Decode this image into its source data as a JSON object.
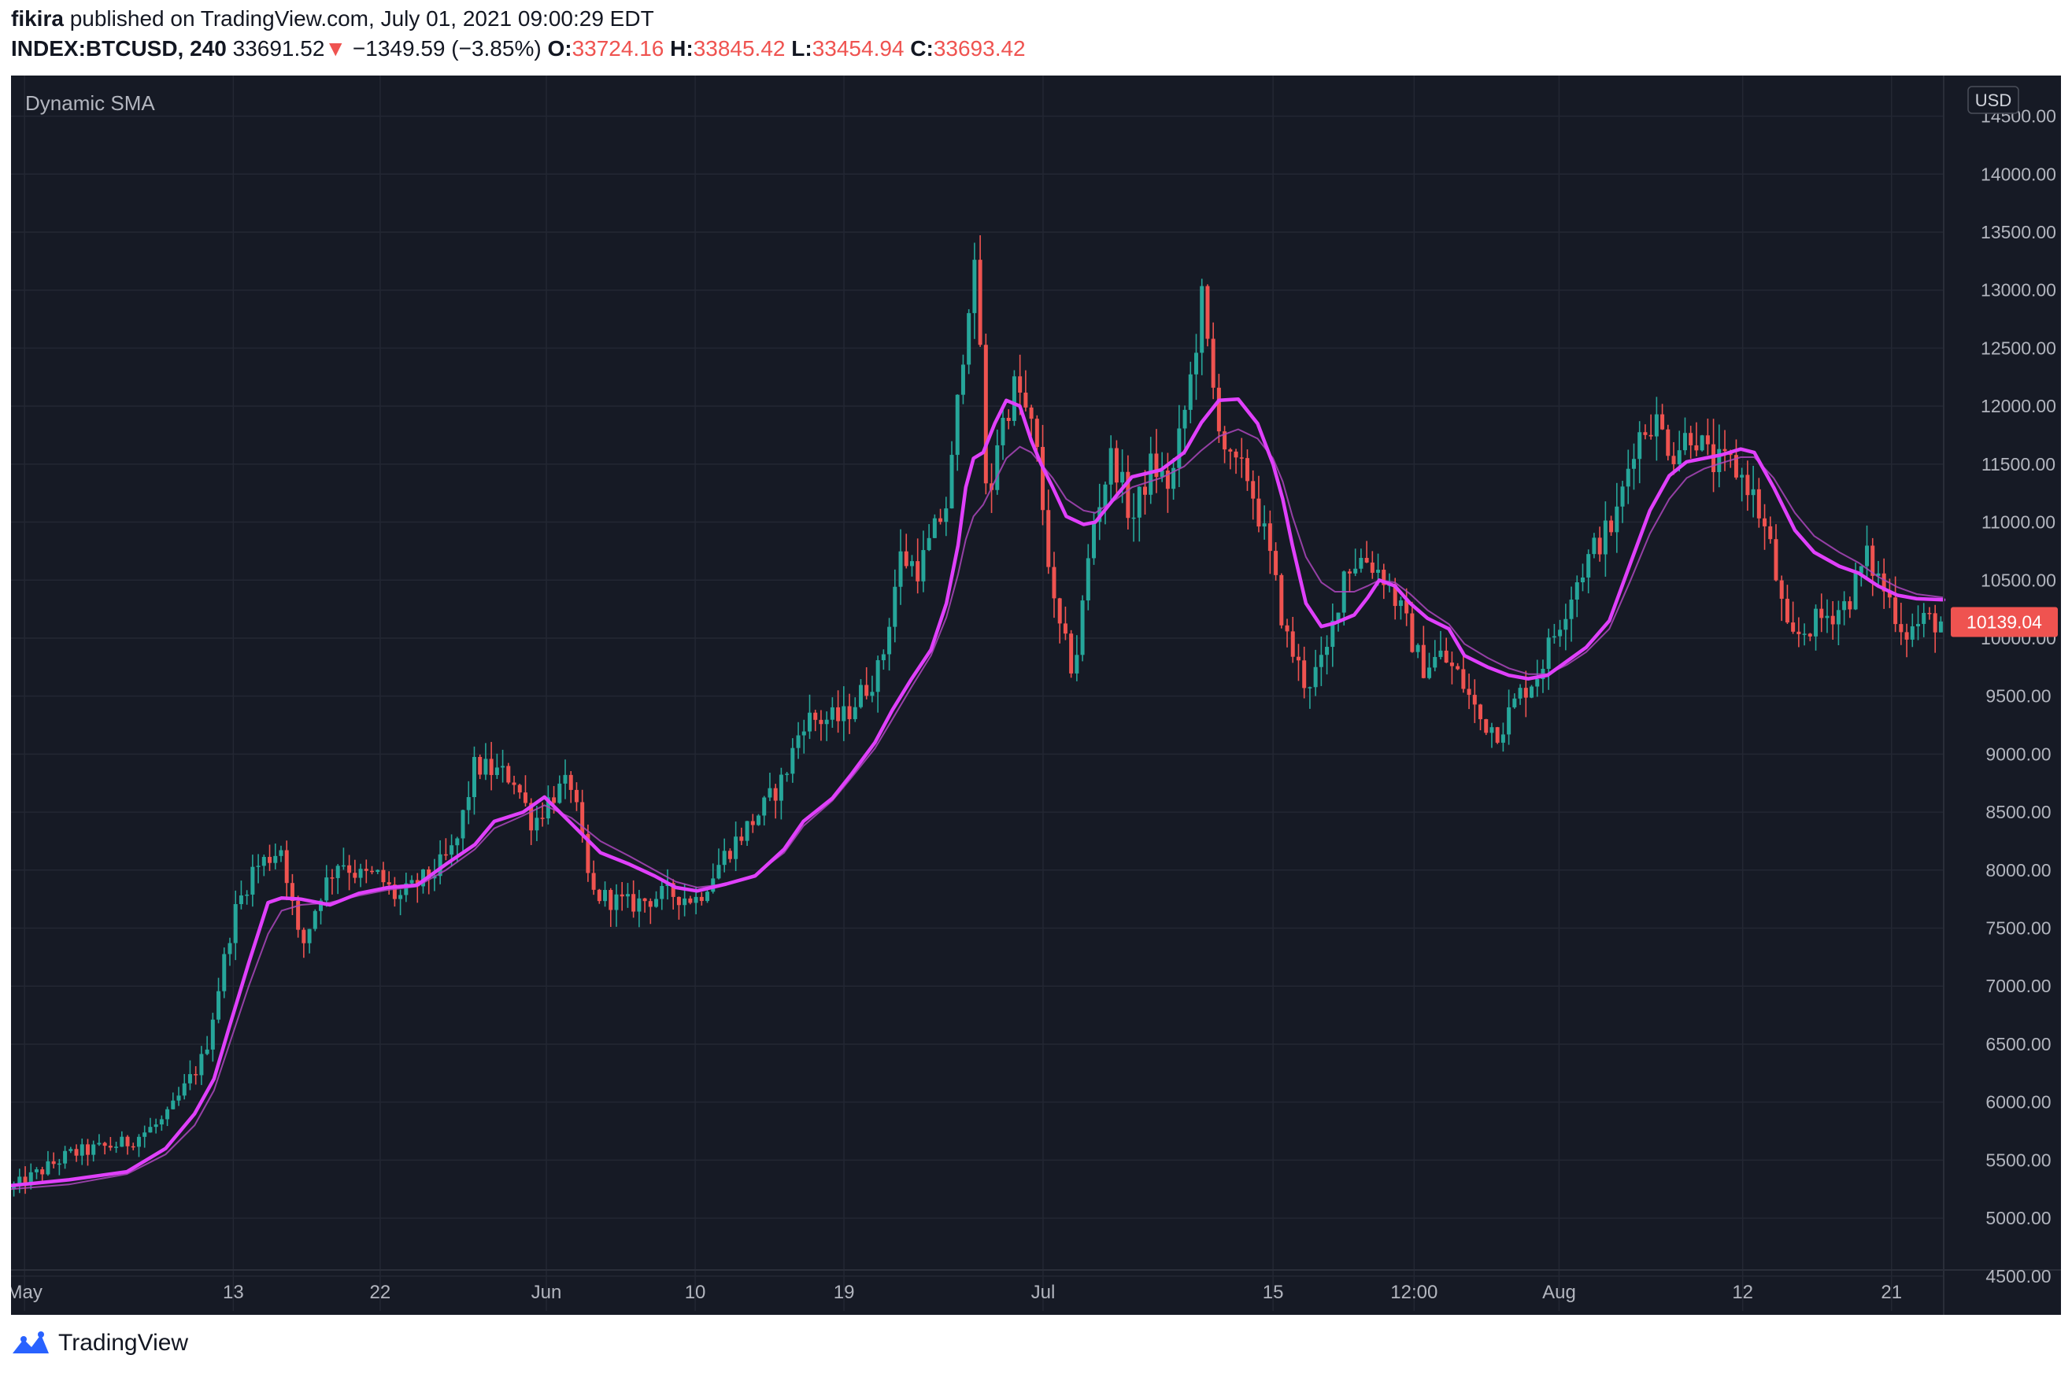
{
  "header": {
    "author": "fikira",
    "published_text": "published on TradingView.com, July 01, 2021 09:00:29 EDT",
    "symbol": "INDEX:BTCUSD, 240",
    "last_price": "33691.52",
    "change_arrow": "▼",
    "change": "−1349.59 (−3.85%)",
    "open_label": "O:",
    "open": "33724.16",
    "high_label": "H:",
    "high": "33845.42",
    "low_label": "L:",
    "low": "33454.94",
    "close_label": "C:",
    "close": "33693.42"
  },
  "chart_data": {
    "type": "candlestick",
    "indicator_label": "Dynamic SMA",
    "currency": "USD",
    "ylim": [
      4200,
      14850
    ],
    "yticks": [
      4500,
      5000,
      5500,
      6000,
      6500,
      7000,
      7500,
      8000,
      8500,
      9000,
      9500,
      10000,
      10500,
      11000,
      11500,
      12000,
      12500,
      13000,
      13500,
      14000,
      14500
    ],
    "price_label": "10139.04",
    "xlim": [
      0,
      100
    ],
    "xticks": [
      {
        "label": "May",
        "x": 0.7
      },
      {
        "label": "13",
        "x": 11.5
      },
      {
        "label": "22",
        "x": 19.1
      },
      {
        "label": "Jun",
        "x": 27.7
      },
      {
        "label": "10",
        "x": 35.4
      },
      {
        "label": "19",
        "x": 43.1
      },
      {
        "label": "Jul",
        "x": 53.4
      },
      {
        "label": "15",
        "x": 65.3
      },
      {
        "label": "12:00",
        "x": 72.6
      },
      {
        "label": "Aug",
        "x": 80.1
      },
      {
        "label": "12",
        "x": 89.6
      },
      {
        "label": "21",
        "x": 97.3
      }
    ],
    "anchors": [
      [
        0,
        5250
      ],
      [
        3,
        5550
      ],
      [
        6,
        5650
      ],
      [
        8,
        5850
      ],
      [
        10,
        6400
      ],
      [
        11.5,
        7600
      ],
      [
        12.5,
        8000
      ],
      [
        14,
        8200
      ],
      [
        15,
        7300
      ],
      [
        16,
        7800
      ],
      [
        17,
        8100
      ],
      [
        18,
        7950
      ],
      [
        19,
        7950
      ],
      [
        20,
        7750
      ],
      [
        22,
        8000
      ],
      [
        23,
        8200
      ],
      [
        24,
        8900
      ],
      [
        26,
        8800
      ],
      [
        27,
        8400
      ],
      [
        28,
        8650
      ],
      [
        29,
        8750
      ],
      [
        30,
        7800
      ],
      [
        32,
        7700
      ],
      [
        34,
        7800
      ],
      [
        35.5,
        7750
      ],
      [
        37,
        8150
      ],
      [
        39,
        8550
      ],
      [
        40,
        8800
      ],
      [
        41,
        9300
      ],
      [
        43,
        9300
      ],
      [
        45,
        9750
      ],
      [
        46,
        10700
      ],
      [
        47,
        10600
      ],
      [
        48.5,
        11200
      ],
      [
        49.5,
        12900
      ],
      [
        50,
        13200
      ],
      [
        50.5,
        11000
      ],
      [
        51,
        11700
      ],
      [
        52,
        12200
      ],
      [
        53,
        11700
      ],
      [
        54,
        10200
      ],
      [
        55,
        9700
      ],
      [
        56,
        11000
      ],
      [
        57,
        11600
      ],
      [
        58,
        11000
      ],
      [
        59,
        11500
      ],
      [
        60,
        11300
      ],
      [
        61,
        12200
      ],
      [
        61.7,
        13000
      ],
      [
        62,
        12300
      ],
      [
        63,
        11500
      ],
      [
        64,
        11400
      ],
      [
        65,
        10800
      ],
      [
        66,
        10000
      ],
      [
        67,
        9600
      ],
      [
        68,
        9800
      ],
      [
        69,
        10600
      ],
      [
        70,
        10700
      ],
      [
        71,
        10550
      ],
      [
        72,
        10200
      ],
      [
        73,
        9750
      ],
      [
        74,
        9850
      ],
      [
        75,
        9650
      ],
      [
        76,
        9300
      ],
      [
        77,
        9200
      ],
      [
        78,
        9500
      ],
      [
        79,
        9700
      ],
      [
        80,
        10100
      ],
      [
        81,
        10500
      ],
      [
        82,
        10800
      ],
      [
        83,
        11000
      ],
      [
        84,
        11700
      ],
      [
        85,
        11900
      ],
      [
        86,
        11600
      ],
      [
        87,
        11800
      ],
      [
        88,
        11500
      ],
      [
        89,
        11500
      ],
      [
        90,
        11300
      ],
      [
        91,
        10800
      ],
      [
        92,
        9950
      ],
      [
        93,
        10100
      ],
      [
        94,
        10200
      ],
      [
        95,
        10300
      ],
      [
        96,
        10700
      ],
      [
        97,
        10400
      ],
      [
        98,
        10050
      ],
      [
        99,
        10150
      ],
      [
        100,
        10140
      ]
    ],
    "sma_fast": [
      [
        0,
        5280
      ],
      [
        3,
        5330
      ],
      [
        6,
        5400
      ],
      [
        8,
        5600
      ],
      [
        9.5,
        5900
      ],
      [
        10.5,
        6200
      ],
      [
        11.3,
        6650
      ],
      [
        12.3,
        7200
      ],
      [
        13.3,
        7720
      ],
      [
        14,
        7760
      ],
      [
        15,
        7750
      ],
      [
        16.5,
        7700
      ],
      [
        18,
        7800
      ],
      [
        19.5,
        7850
      ],
      [
        21,
        7870
      ],
      [
        22.5,
        8050
      ],
      [
        24,
        8220
      ],
      [
        25,
        8420
      ],
      [
        26.5,
        8500
      ],
      [
        27.6,
        8630
      ],
      [
        29,
        8400
      ],
      [
        30.5,
        8150
      ],
      [
        32,
        8050
      ],
      [
        33.3,
        7950
      ],
      [
        34.4,
        7850
      ],
      [
        35.5,
        7820
      ],
      [
        37,
        7880
      ],
      [
        38.5,
        7950
      ],
      [
        40,
        8180
      ],
      [
        41,
        8420
      ],
      [
        42.5,
        8620
      ],
      [
        43.5,
        8830
      ],
      [
        44.7,
        9100
      ],
      [
        45.6,
        9380
      ],
      [
        46.6,
        9650
      ],
      [
        47.6,
        9900
      ],
      [
        48.4,
        10300
      ],
      [
        49,
        10800
      ],
      [
        49.4,
        11300
      ],
      [
        49.8,
        11550
      ],
      [
        50.3,
        11600
      ],
      [
        50.9,
        11850
      ],
      [
        51.5,
        12050
      ],
      [
        52.2,
        12000
      ],
      [
        52.8,
        11700
      ],
      [
        53.3,
        11500
      ],
      [
        53.9,
        11300
      ],
      [
        54.6,
        11050
      ],
      [
        55.5,
        10980
      ],
      [
        56.1,
        11000
      ],
      [
        57.2,
        11230
      ],
      [
        58,
        11390
      ],
      [
        59.5,
        11450
      ],
      [
        60.7,
        11600
      ],
      [
        61.6,
        11860
      ],
      [
        62.5,
        12050
      ],
      [
        63.5,
        12060
      ],
      [
        64.5,
        11850
      ],
      [
        65.3,
        11500
      ],
      [
        65.8,
        11200
      ],
      [
        66.3,
        10800
      ],
      [
        67,
        10300
      ],
      [
        67.8,
        10100
      ],
      [
        68.5,
        10130
      ],
      [
        69.5,
        10200
      ],
      [
        70.2,
        10350
      ],
      [
        70.8,
        10500
      ],
      [
        71.6,
        10450
      ],
      [
        72.4,
        10300
      ],
      [
        73.3,
        10170
      ],
      [
        74.4,
        10080
      ],
      [
        75.2,
        9850
      ],
      [
        76.4,
        9750
      ],
      [
        77.5,
        9680
      ],
      [
        78.5,
        9650
      ],
      [
        79.5,
        9680
      ],
      [
        80.5,
        9800
      ],
      [
        81.5,
        9920
      ],
      [
        82.7,
        10150
      ],
      [
        83.8,
        10650
      ],
      [
        84.8,
        11100
      ],
      [
        85.8,
        11400
      ],
      [
        86.7,
        11520
      ],
      [
        87.6,
        11550
      ],
      [
        88.5,
        11580
      ],
      [
        89.5,
        11630
      ],
      [
        90.2,
        11600
      ],
      [
        91.2,
        11300
      ],
      [
        92.3,
        10930
      ],
      [
        93.3,
        10740
      ],
      [
        94.6,
        10620
      ],
      [
        95.6,
        10560
      ],
      [
        96.6,
        10450
      ],
      [
        97.6,
        10370
      ],
      [
        98.6,
        10340
      ],
      [
        100,
        10330
      ]
    ],
    "sma_slow": [
      [
        0,
        5250
      ],
      [
        3,
        5290
      ],
      [
        6,
        5380
      ],
      [
        8,
        5550
      ],
      [
        9.5,
        5800
      ],
      [
        10.5,
        6100
      ],
      [
        11.3,
        6500
      ],
      [
        12.3,
        7000
      ],
      [
        13.3,
        7450
      ],
      [
        14,
        7650
      ],
      [
        15,
        7700
      ],
      [
        16.5,
        7720
      ],
      [
        18,
        7780
      ],
      [
        19.5,
        7830
      ],
      [
        21,
        7860
      ],
      [
        22.5,
        8000
      ],
      [
        24,
        8180
      ],
      [
        25,
        8360
      ],
      [
        26.5,
        8470
      ],
      [
        27.6,
        8560
      ],
      [
        29,
        8450
      ],
      [
        30.5,
        8250
      ],
      [
        32,
        8120
      ],
      [
        33.3,
        8000
      ],
      [
        34.4,
        7900
      ],
      [
        35.5,
        7850
      ],
      [
        37,
        7880
      ],
      [
        38.5,
        7960
      ],
      [
        40,
        8150
      ],
      [
        41,
        8380
      ],
      [
        42.5,
        8600
      ],
      [
        43.5,
        8800
      ],
      [
        44.7,
        9050
      ],
      [
        45.6,
        9300
      ],
      [
        46.6,
        9580
      ],
      [
        47.6,
        9850
      ],
      [
        48.4,
        10180
      ],
      [
        49,
        10550
      ],
      [
        49.4,
        10850
      ],
      [
        49.8,
        11050
      ],
      [
        50.3,
        11150
      ],
      [
        50.9,
        11350
      ],
      [
        51.5,
        11550
      ],
      [
        52.2,
        11650
      ],
      [
        52.8,
        11600
      ],
      [
        53.3,
        11500
      ],
      [
        53.9,
        11380
      ],
      [
        54.6,
        11200
      ],
      [
        55.5,
        11100
      ],
      [
        56.1,
        11080
      ],
      [
        57.2,
        11200
      ],
      [
        58,
        11300
      ],
      [
        59.5,
        11380
      ],
      [
        60.7,
        11480
      ],
      [
        61.6,
        11620
      ],
      [
        62.5,
        11740
      ],
      [
        63.5,
        11800
      ],
      [
        64.5,
        11720
      ],
      [
        65.3,
        11550
      ],
      [
        65.8,
        11350
      ],
      [
        66.3,
        11050
      ],
      [
        67,
        10700
      ],
      [
        67.8,
        10480
      ],
      [
        68.5,
        10400
      ],
      [
        69.5,
        10400
      ],
      [
        70.2,
        10450
      ],
      [
        70.8,
        10500
      ],
      [
        71.6,
        10480
      ],
      [
        72.4,
        10380
      ],
      [
        73.3,
        10240
      ],
      [
        74.4,
        10120
      ],
      [
        75.2,
        9950
      ],
      [
        76.4,
        9830
      ],
      [
        77.5,
        9740
      ],
      [
        78.5,
        9690
      ],
      [
        79.5,
        9690
      ],
      [
        80.5,
        9770
      ],
      [
        81.5,
        9880
      ],
      [
        82.7,
        10080
      ],
      [
        83.8,
        10500
      ],
      [
        84.8,
        10900
      ],
      [
        85.8,
        11200
      ],
      [
        86.7,
        11380
      ],
      [
        87.6,
        11460
      ],
      [
        88.5,
        11510
      ],
      [
        89.5,
        11560
      ],
      [
        90.2,
        11560
      ],
      [
        91.2,
        11380
      ],
      [
        92.3,
        11080
      ],
      [
        93.3,
        10880
      ],
      [
        94.6,
        10740
      ],
      [
        95.6,
        10650
      ],
      [
        96.6,
        10530
      ],
      [
        97.6,
        10440
      ],
      [
        98.6,
        10380
      ],
      [
        100,
        10350
      ]
    ],
    "colors": {
      "background": "#161a25",
      "grid": "#232733",
      "up": "#26a69a",
      "down": "#ef5350",
      "sma_fast": "#e040fb",
      "sma_slow": "#ab47bc",
      "axis_text": "#b2b5be",
      "price_label_bg": "#ef5350"
    }
  },
  "footer": {
    "brand": "TradingView"
  }
}
